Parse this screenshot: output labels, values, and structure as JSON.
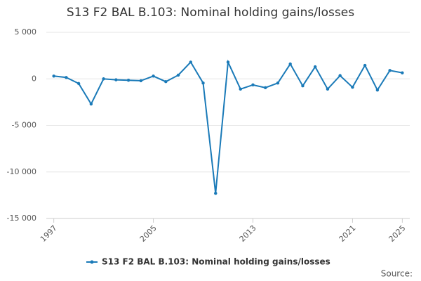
{
  "chart_data": {
    "type": "line",
    "title": "S13 F2 BAL B.103: Nominal holding gains/losses",
    "source": "Source:",
    "x": [
      1997,
      1998,
      1999,
      2000,
      2001,
      2002,
      2003,
      2004,
      2005,
      2006,
      2007,
      2008,
      2009,
      2010,
      2011,
      2012,
      2013,
      2014,
      2015,
      2016,
      2017,
      2018,
      2019,
      2020,
      2021,
      2022,
      2023,
      2024,
      2025
    ],
    "series": [
      {
        "name": "S13 F2 BAL B.103: Nominal holding gains/losses",
        "color": "#1a7ab8",
        "values": [
          300,
          150,
          -500,
          -2700,
          0,
          -100,
          -150,
          -200,
          300,
          -300,
          400,
          1800,
          -450,
          -12300,
          1800,
          -1100,
          -650,
          -950,
          -450,
          1600,
          -750,
          1300,
          -1100,
          350,
          -900,
          1450,
          -1200,
          900,
          650
        ]
      }
    ],
    "xlim": [
      1996.4,
      2025.6
    ],
    "xticks": [
      1997,
      2005,
      2013,
      2021,
      2025
    ],
    "ylim": [
      -15000,
      5000
    ],
    "yticks": [
      {
        "value": -15000,
        "label": "-15 000"
      },
      {
        "value": -10000,
        "label": "-10 000"
      },
      {
        "value": -5000,
        "label": "-5 000"
      },
      0,
      {
        "value": 5000,
        "label": "5 000"
      }
    ],
    "grid": true,
    "legend": "bottom"
  }
}
